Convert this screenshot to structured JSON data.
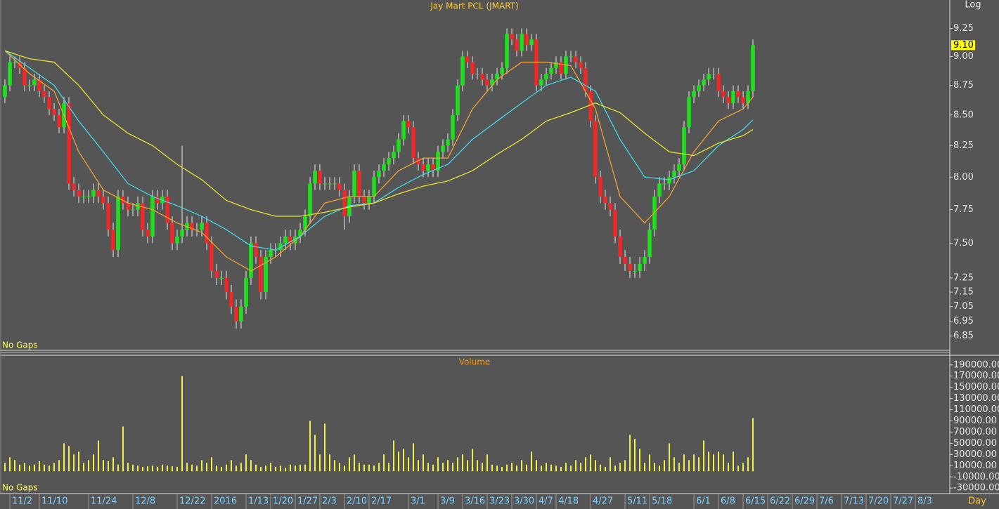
{
  "chart_data": [
    {
      "type": "candlestick",
      "title": "Jay Mart PCL (JMART)",
      "scale_label": "Log",
      "log_scale": true,
      "note": "No Gaps",
      "up_color": "#1ee01e",
      "down_color": "#f02828",
      "xlim": [
        -1,
        192
      ],
      "ylim": [
        6.76,
        9.51
      ],
      "yticks": [
        6.85,
        6.95,
        7.05,
        7.15,
        7.25,
        {
          "value": 7.5,
          "label": "7.50"
        },
        7.75,
        {
          "value": 8,
          "label": "8.00"
        },
        8.25,
        {
          "value": 8.5,
          "label": "8.50"
        },
        8.75,
        {
          "value": 9,
          "label": "9.00"
        },
        9.25
      ],
      "last_value": {
        "value": 9.1,
        "label": "9.10"
      },
      "open": [
        8.65,
        8.75,
        8.95,
        8.95,
        8.9,
        8.75,
        8.75,
        8.8,
        8.7,
        8.65,
        8.55,
        8.5,
        8.4,
        8.6,
        7.95,
        7.9,
        7.85,
        7.85,
        7.85,
        7.9,
        7.85,
        7.8,
        7.6,
        7.45,
        7.85,
        7.8,
        7.75,
        7.75,
        7.8,
        7.6,
        7.55,
        7.85,
        7.8,
        7.85,
        7.65,
        7.5,
        7.55,
        7.6,
        7.65,
        7.6,
        7.6,
        7.65,
        7.5,
        7.3,
        7.25,
        7.25,
        7.15,
        7.05,
        6.95,
        7.05,
        7.25,
        7.5,
        7.4,
        7.15,
        7.4,
        7.45,
        7.45,
        7.5,
        7.55,
        7.5,
        7.55,
        7.6,
        7.7,
        7.95,
        8.05,
        7.95,
        7.95,
        7.95,
        7.95,
        7.9,
        7.7,
        7.85,
        8.05,
        7.85,
        7.8,
        7.85,
        8.0,
        8.05,
        8.1,
        8.15,
        8.2,
        8.3,
        8.45,
        8.4,
        8.15,
        8.1,
        8.05,
        8.1,
        8.05,
        8.2,
        8.25,
        8.3,
        8.5,
        8.75,
        9.0,
        8.95,
        8.85,
        8.85,
        8.8,
        8.75,
        8.8,
        8.85,
        8.9,
        9.2,
        9.15,
        9.05,
        9.2,
        9.1,
        9.15,
        8.75,
        8.8,
        8.85,
        8.9,
        8.95,
        8.85,
        9.0,
        9.0,
        8.95,
        8.9,
        8.7,
        8.45,
        8.0,
        7.85,
        7.8,
        7.75,
        7.55,
        7.4,
        7.35,
        7.3,
        7.3,
        7.35,
        7.4,
        7.6,
        7.85,
        7.95,
        7.95,
        8.0,
        8.05,
        8.1,
        8.4,
        8.65,
        8.7,
        8.75,
        8.8,
        8.85,
        8.85,
        8.7,
        8.65,
        8.6,
        8.7,
        8.65,
        8.6,
        8.7
      ],
      "high": [
        8.8,
        9.0,
        9.0,
        9.0,
        8.95,
        8.8,
        8.85,
        8.85,
        8.75,
        8.7,
        8.6,
        8.55,
        8.65,
        8.65,
        8.0,
        7.95,
        7.9,
        7.9,
        7.95,
        7.95,
        7.9,
        7.85,
        7.65,
        7.9,
        7.9,
        7.85,
        7.8,
        7.85,
        7.85,
        7.65,
        7.9,
        7.9,
        7.9,
        7.9,
        7.7,
        7.6,
        8.25,
        7.7,
        7.7,
        7.65,
        7.7,
        7.7,
        7.55,
        7.35,
        7.3,
        7.3,
        7.2,
        7.1,
        7.1,
        7.3,
        7.55,
        7.55,
        7.45,
        7.45,
        7.5,
        7.5,
        7.55,
        7.6,
        7.6,
        7.6,
        7.65,
        7.75,
        8.0,
        8.1,
        8.1,
        8.0,
        8.0,
        8.0,
        8.0,
        7.95,
        7.9,
        8.1,
        8.1,
        7.9,
        7.9,
        8.05,
        8.1,
        8.15,
        8.2,
        8.25,
        8.35,
        8.5,
        8.5,
        8.45,
        8.2,
        8.15,
        8.15,
        8.15,
        8.25,
        8.3,
        8.35,
        8.55,
        8.8,
        9.05,
        9.05,
        9.0,
        8.9,
        8.9,
        8.85,
        8.85,
        8.9,
        8.95,
        9.25,
        9.25,
        9.2,
        9.25,
        9.25,
        9.2,
        9.2,
        8.85,
        8.9,
        8.95,
        9.0,
        9.0,
        9.05,
        9.05,
        9.05,
        9.0,
        8.95,
        8.75,
        8.5,
        8.05,
        7.9,
        7.85,
        7.8,
        7.6,
        7.45,
        7.4,
        7.35,
        7.4,
        7.45,
        7.65,
        7.9,
        8.0,
        8.0,
        8.05,
        8.1,
        8.15,
        8.45,
        8.7,
        8.75,
        8.8,
        8.85,
        8.9,
        8.9,
        8.9,
        8.75,
        8.7,
        8.75,
        8.75,
        8.7,
        8.75,
        9.15
      ],
      "low": [
        8.6,
        8.7,
        8.9,
        8.85,
        8.7,
        8.7,
        8.7,
        8.65,
        8.6,
        8.5,
        8.45,
        8.35,
        8.35,
        7.9,
        7.85,
        7.8,
        7.8,
        7.8,
        7.8,
        7.8,
        7.75,
        7.55,
        7.4,
        7.4,
        7.75,
        7.7,
        7.7,
        7.7,
        7.55,
        7.5,
        7.5,
        7.75,
        7.75,
        7.6,
        7.45,
        7.45,
        7.5,
        7.55,
        7.55,
        7.55,
        7.55,
        7.45,
        7.25,
        7.2,
        7.2,
        7.1,
        7.0,
        6.9,
        6.9,
        7.0,
        7.2,
        7.35,
        7.1,
        7.1,
        7.35,
        7.4,
        7.4,
        7.45,
        7.45,
        7.45,
        7.5,
        7.55,
        7.65,
        7.9,
        7.9,
        7.9,
        7.9,
        7.9,
        7.85,
        7.6,
        7.65,
        7.8,
        7.8,
        7.75,
        7.75,
        7.8,
        7.95,
        8.0,
        8.05,
        8.1,
        8.15,
        8.25,
        8.35,
        8.1,
        8.05,
        8.0,
        8.0,
        8.0,
        8.0,
        8.15,
        8.2,
        8.25,
        8.45,
        8.7,
        8.9,
        8.8,
        8.8,
        8.75,
        8.7,
        8.7,
        8.75,
        8.8,
        8.85,
        9.1,
        9.0,
        9.0,
        9.05,
        9.05,
        8.7,
        8.7,
        8.75,
        8.8,
        8.85,
        8.8,
        8.8,
        8.95,
        8.9,
        8.85,
        8.65,
        8.4,
        7.95,
        7.8,
        7.75,
        7.7,
        7.5,
        7.35,
        7.3,
        7.25,
        7.25,
        7.25,
        7.3,
        7.35,
        7.55,
        7.8,
        7.9,
        7.9,
        7.95,
        8.0,
        8.05,
        8.35,
        8.6,
        8.65,
        8.7,
        8.75,
        8.8,
        8.65,
        8.6,
        8.55,
        8.55,
        8.6,
        8.55,
        8.55,
        8.65
      ],
      "close": [
        8.75,
        8.95,
        8.95,
        8.9,
        8.75,
        8.75,
        8.8,
        8.7,
        8.65,
        8.55,
        8.5,
        8.4,
        8.6,
        7.95,
        7.9,
        7.85,
        7.85,
        7.85,
        7.9,
        7.85,
        7.8,
        7.6,
        7.45,
        7.85,
        7.8,
        7.75,
        7.75,
        7.8,
        7.6,
        7.55,
        7.85,
        7.8,
        7.85,
        7.65,
        7.5,
        7.55,
        7.6,
        7.65,
        7.6,
        7.6,
        7.65,
        7.5,
        7.3,
        7.25,
        7.25,
        7.15,
        7.05,
        6.95,
        7.05,
        7.25,
        7.5,
        7.4,
        7.15,
        7.4,
        7.45,
        7.45,
        7.5,
        7.55,
        7.5,
        7.55,
        7.6,
        7.7,
        7.95,
        8.05,
        7.95,
        7.95,
        7.95,
        7.95,
        7.9,
        7.7,
        7.85,
        8.05,
        7.85,
        7.8,
        7.85,
        8.0,
        8.05,
        8.1,
        8.15,
        8.2,
        8.3,
        8.45,
        8.4,
        8.15,
        8.1,
        8.05,
        8.1,
        8.05,
        8.2,
        8.25,
        8.3,
        8.5,
        8.75,
        9.0,
        8.95,
        8.85,
        8.85,
        8.8,
        8.75,
        8.8,
        8.85,
        8.9,
        9.2,
        9.15,
        9.05,
        9.2,
        9.1,
        9.15,
        8.75,
        8.8,
        8.85,
        8.9,
        8.95,
        8.85,
        9.0,
        9.0,
        8.95,
        8.9,
        8.7,
        8.45,
        8.0,
        7.85,
        7.8,
        7.75,
        7.55,
        7.4,
        7.35,
        7.3,
        7.3,
        7.35,
        7.4,
        7.6,
        7.85,
        7.95,
        7.95,
        8.0,
        8.05,
        8.1,
        8.4,
        8.65,
        8.7,
        8.75,
        8.8,
        8.85,
        8.85,
        8.7,
        8.65,
        8.6,
        8.7,
        8.65,
        8.6,
        8.7,
        9.1
      ],
      "moving_averages": [
        {
          "color": "#f0a030",
          "x": [
            0,
            5,
            10,
            15,
            20,
            25,
            30,
            35,
            40,
            45,
            50,
            55,
            60,
            65,
            70,
            75,
            80,
            85,
            90,
            95,
            100,
            105,
            110,
            115,
            120,
            125,
            130,
            135,
            140,
            145,
            150,
            152
          ],
          "values": [
            9.05,
            8.85,
            8.7,
            8.2,
            7.9,
            7.8,
            7.75,
            7.65,
            7.58,
            7.4,
            7.3,
            7.4,
            7.55,
            7.8,
            7.85,
            7.85,
            8.05,
            8.15,
            8.15,
            8.55,
            8.8,
            8.95,
            8.95,
            8.92,
            8.55,
            7.85,
            7.65,
            7.85,
            8.2,
            8.45,
            8.55,
            8.65
          ]
        },
        {
          "color": "#40d8e8",
          "x": [
            0,
            5,
            10,
            15,
            20,
            25,
            30,
            35,
            40,
            45,
            50,
            55,
            60,
            65,
            70,
            75,
            80,
            85,
            90,
            95,
            100,
            105,
            110,
            115,
            120,
            125,
            130,
            135,
            140,
            145,
            150,
            152
          ],
          "values": [
            9.05,
            8.9,
            8.75,
            8.45,
            8.2,
            7.95,
            7.85,
            7.78,
            7.7,
            7.6,
            7.48,
            7.45,
            7.55,
            7.7,
            7.78,
            7.8,
            7.92,
            8.02,
            8.1,
            8.3,
            8.45,
            8.6,
            8.75,
            8.82,
            8.7,
            8.3,
            8.0,
            7.98,
            8.05,
            8.25,
            8.38,
            8.46
          ]
        },
        {
          "color": "#e8e030",
          "x": [
            0,
            5,
            10,
            15,
            20,
            25,
            30,
            35,
            40,
            45,
            50,
            55,
            60,
            65,
            70,
            75,
            80,
            85,
            90,
            95,
            100,
            105,
            110,
            115,
            120,
            125,
            130,
            135,
            140,
            145,
            150,
            152
          ],
          "values": [
            9.05,
            8.98,
            8.95,
            8.75,
            8.5,
            8.35,
            8.25,
            8.1,
            7.98,
            7.82,
            7.75,
            7.7,
            7.7,
            7.73,
            7.77,
            7.8,
            7.87,
            7.93,
            7.97,
            8.05,
            8.18,
            8.3,
            8.45,
            8.52,
            8.6,
            8.52,
            8.35,
            8.2,
            8.17,
            8.27,
            8.33,
            8.38
          ]
        }
      ]
    },
    {
      "type": "bar",
      "title": "Volume",
      "note": "No Gaps",
      "x_label": "Day",
      "color": "#f0f040",
      "xlim": [
        -1,
        192
      ],
      "xticks": [
        {
          "value": 1,
          "label": "11/2"
        },
        {
          "value": 7,
          "label": "11/10"
        },
        {
          "value": 17,
          "label": "11/24"
        },
        {
          "value": 26,
          "label": "12/8"
        },
        {
          "value": 35,
          "label": "12/22"
        },
        {
          "value": 42,
          "label": "2016"
        },
        {
          "value": 49,
          "label": "1/13"
        },
        {
          "value": 54,
          "label": "1/20"
        },
        {
          "value": 59,
          "label": "1/27"
        },
        {
          "value": 64,
          "label": "2/3"
        },
        {
          "value": 69,
          "label": "2/10"
        },
        {
          "value": 74,
          "label": "2/17"
        },
        {
          "value": 82,
          "label": "3/1"
        },
        {
          "value": 88,
          "label": "3/9"
        },
        {
          "value": 93,
          "label": "3/16"
        },
        {
          "value": 98,
          "label": "3/23"
        },
        {
          "value": 103,
          "label": "3/30"
        },
        {
          "value": 108,
          "label": "4/7"
        },
        {
          "value": 112,
          "label": "4/18"
        },
        {
          "value": 119,
          "label": "4/27"
        },
        {
          "value": 126,
          "label": "5/11"
        },
        {
          "value": 131,
          "label": "5/18"
        },
        {
          "value": 140,
          "label": "6/1"
        },
        {
          "value": 145,
          "label": "6/8"
        },
        {
          "value": 150,
          "label": "6/15"
        },
        {
          "value": 155,
          "label": "6/22"
        },
        {
          "value": 160,
          "label": "6/29"
        },
        {
          "value": 165,
          "label": "7/6"
        },
        {
          "value": 170,
          "label": "7/13"
        },
        {
          "value": 175,
          "label": "7/20"
        },
        {
          "value": 180,
          "label": "7/27"
        },
        {
          "value": 185,
          "label": "8/3"
        }
      ],
      "ylim": [
        -36000,
        206000
      ],
      "yticks": [
        {
          "value": -30000,
          "label": "-30000.00"
        },
        {
          "value": -10000,
          "label": "-10000.00"
        },
        {
          "value": 10000,
          "label": "10000.00"
        },
        {
          "value": 30000,
          "label": "30000.00"
        },
        {
          "value": 50000,
          "label": "50000.00"
        },
        {
          "value": 70000,
          "label": "70000.00"
        },
        {
          "value": 90000,
          "label": "90000.00"
        },
        {
          "value": 110000,
          "label": "110000.00"
        },
        {
          "value": 130000,
          "label": "130000.00"
        },
        {
          "value": 150000,
          "label": "150000.00"
        },
        {
          "value": 170000,
          "label": "170000.00"
        },
        {
          "value": 190000,
          "label": "190000.00"
        }
      ],
      "values": [
        15000,
        25000,
        20000,
        12000,
        15000,
        10000,
        12000,
        18000,
        12000,
        10000,
        15000,
        20000,
        50000,
        45000,
        30000,
        35000,
        15000,
        20000,
        30000,
        55000,
        20000,
        18000,
        25000,
        12000,
        80000,
        15000,
        12000,
        10000,
        8000,
        9000,
        10000,
        8000,
        12000,
        10000,
        9000,
        8000,
        170000,
        15000,
        12000,
        10000,
        20000,
        15000,
        25000,
        10000,
        8000,
        12000,
        20000,
        10000,
        15000,
        30000,
        20000,
        12000,
        8000,
        10000,
        15000,
        8000,
        10000,
        6000,
        12000,
        10000,
        12000,
        12000,
        90000,
        65000,
        30000,
        85000,
        30000,
        20000,
        15000,
        10000,
        25000,
        30000,
        15000,
        12000,
        12000,
        10000,
        15000,
        30000,
        15000,
        55000,
        35000,
        40000,
        25000,
        50000,
        20000,
        30000,
        15000,
        12000,
        25000,
        15000,
        20000,
        15000,
        25000,
        30000,
        20000,
        40000,
        20000,
        15000,
        30000,
        12000,
        10000,
        8000,
        12000,
        15000,
        10000,
        20000,
        12000,
        35000,
        20000,
        10000,
        15000,
        12000,
        10000,
        8000,
        15000,
        10000,
        20000,
        15000,
        25000,
        30000,
        20000,
        12000,
        8000,
        25000,
        10000,
        15000,
        20000,
        65000,
        58000,
        40000,
        15000,
        30000,
        15000,
        10000,
        20000,
        50000,
        25000,
        15000,
        30000,
        20000,
        30000,
        25000,
        55000,
        35000,
        30000,
        35000,
        30000,
        15000,
        35000,
        10000,
        15000,
        25000,
        95000
      ]
    }
  ]
}
